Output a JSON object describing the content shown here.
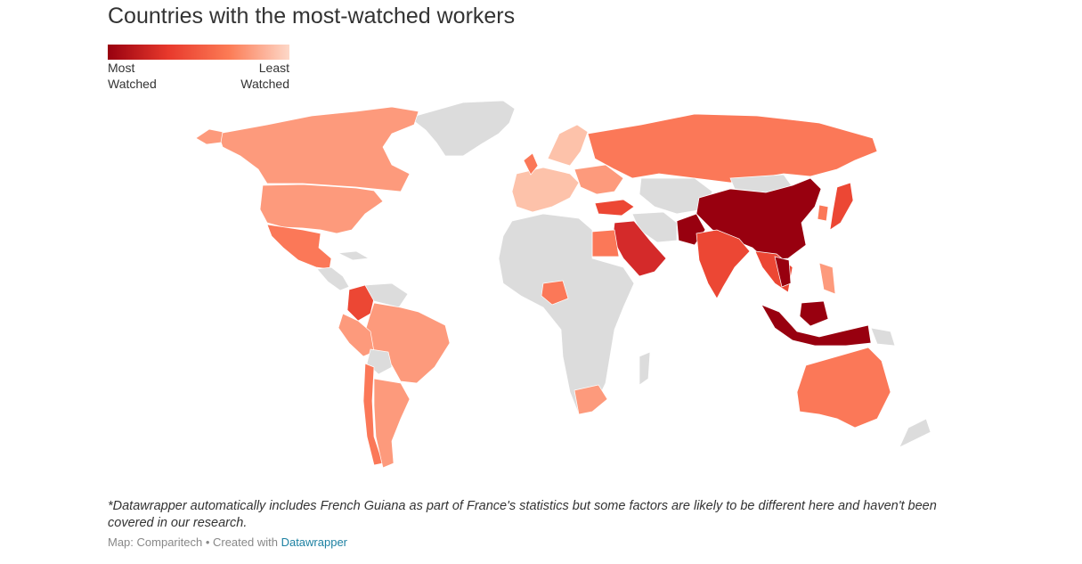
{
  "title": "Countries with the most-watched workers",
  "legend": {
    "left_label": "Most\nWatched",
    "right_label": "Least\nWatched",
    "colors": [
      "#98000f",
      "#e8392c",
      "#fc7b55",
      "#fdd8c8"
    ]
  },
  "map_colors": {
    "no_data": "#dcdcdc",
    "most": "#98000f",
    "high": "#d42a2a",
    "upper_mid": "#ec4734",
    "mid": "#fb7858",
    "low_mid": "#fd9a7c",
    "low": "#fdc2aa",
    "least": "#fee0d2"
  },
  "footnote": "*Datawrapper automatically includes French Guiana as part of France's statistics but some factors are likely to be different here and haven't been covered in our research.",
  "credit": {
    "prefix": "Map: Comparitech • Created with ",
    "link": "Datawrapper"
  }
}
